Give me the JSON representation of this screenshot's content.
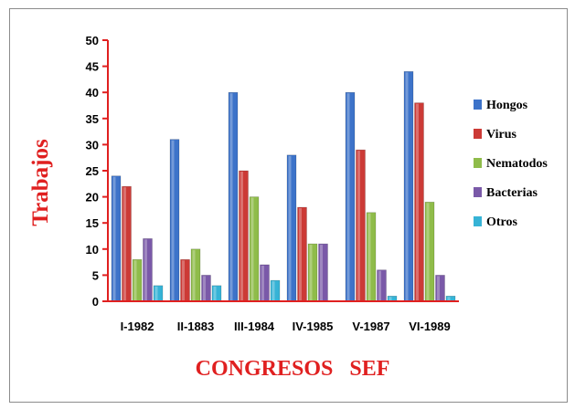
{
  "chart_data": {
    "type": "bar",
    "title": "",
    "xlabel": "CONGRESOS   SEF",
    "ylabel": "Trabajos",
    "ylim": [
      0,
      50
    ],
    "yticks": [
      0,
      5,
      10,
      15,
      20,
      25,
      30,
      35,
      40,
      45,
      50
    ],
    "grid": false,
    "legend_position": "right",
    "categories": [
      "I-1982",
      "II-1883",
      "III-1984",
      "IV-1985",
      "V-1987",
      "VI-1989"
    ],
    "series": [
      {
        "name": "Hongos",
        "color": "#3d73c9",
        "values": [
          24,
          31,
          40,
          28,
          40,
          44
        ]
      },
      {
        "name": "Virus",
        "color": "#cc3a36",
        "values": [
          22,
          8,
          25,
          18,
          29,
          38
        ]
      },
      {
        "name": "Nematodos",
        "color": "#8fbc4a",
        "values": [
          8,
          10,
          20,
          11,
          17,
          19
        ]
      },
      {
        "name": "Bacterias",
        "color": "#7a59a8",
        "values": [
          12,
          5,
          7,
          11,
          6,
          5
        ]
      },
      {
        "name": "Otros",
        "color": "#36b3d6",
        "values": [
          3,
          3,
          4,
          0,
          1,
          1
        ]
      }
    ]
  }
}
